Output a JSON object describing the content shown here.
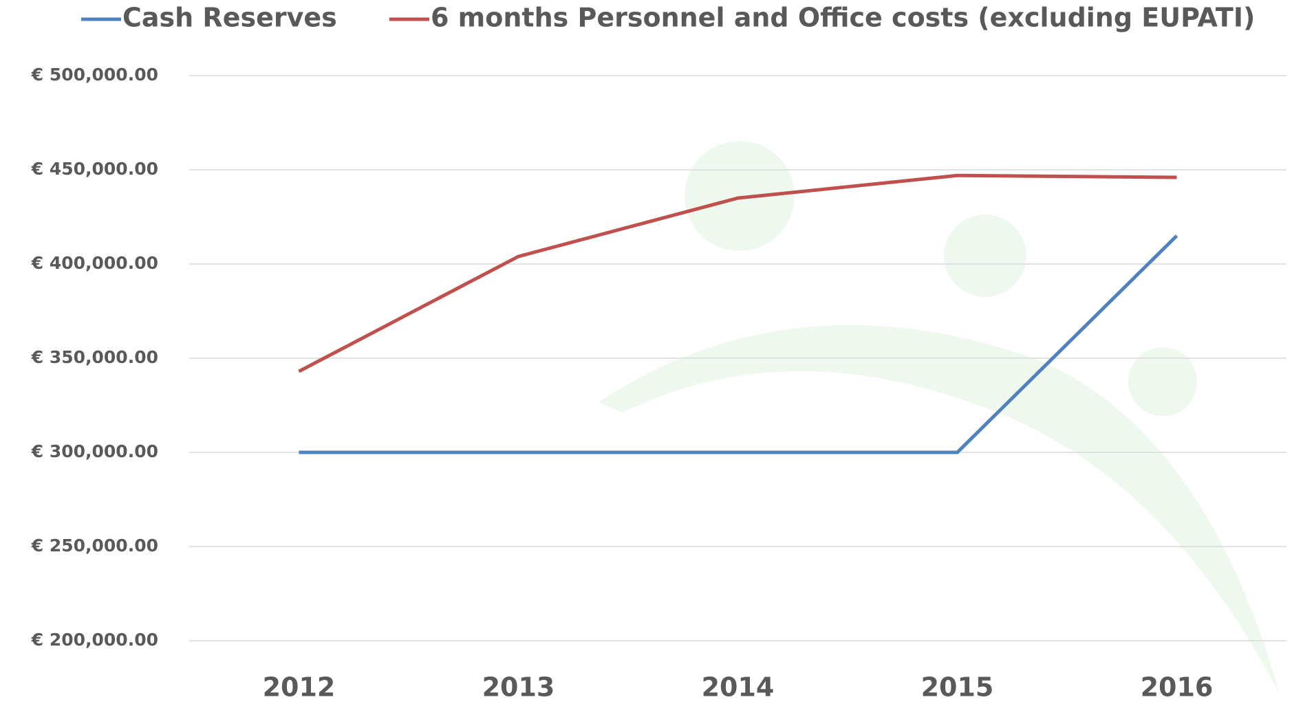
{
  "chart_data": {
    "type": "line",
    "categories": [
      "2012",
      "2013",
      "2014",
      "2015",
      "2016"
    ],
    "series": [
      {
        "name": "Cash Reserves",
        "color": "#4f81bd",
        "values": [
          300000,
          300000,
          300000,
          300000,
          415000
        ]
      },
      {
        "name": "6 months Personnel and Office costs (excluding EUPATI)",
        "color": "#c0504d",
        "values": [
          343000,
          404000,
          435000,
          447000,
          446000
        ]
      }
    ],
    "ylim": [
      200000,
      500000
    ],
    "yticks": [
      {
        "value": 200000,
        "label": "€ 200,000.00"
      },
      {
        "value": 250000,
        "label": "€ 250,000.00"
      },
      {
        "value": 300000,
        "label": "€ 300,000.00"
      },
      {
        "value": 350000,
        "label": "€ 350,000.00"
      },
      {
        "value": 400000,
        "label": "€ 400,000.00"
      },
      {
        "value": 450000,
        "label": "€ 450,000.00"
      },
      {
        "value": 500000,
        "label": "€ 500,000.00"
      }
    ],
    "grid": true,
    "legend": "top"
  }
}
